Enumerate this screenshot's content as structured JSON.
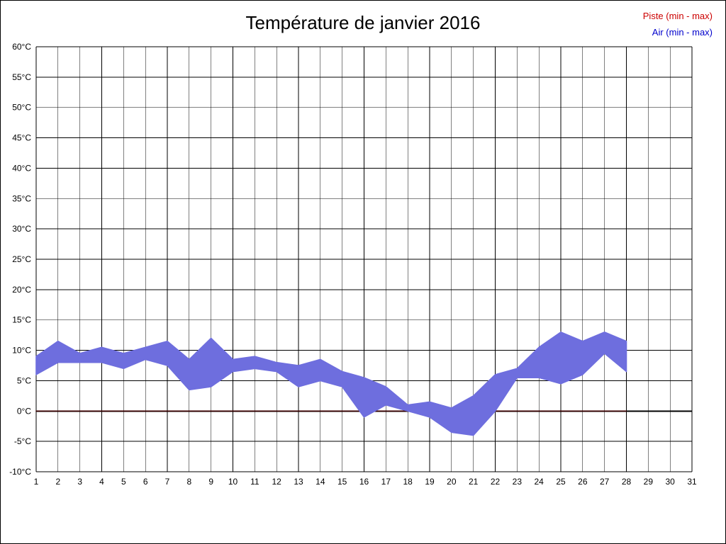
{
  "title": "Température de janvier 2016",
  "legend": [
    {
      "id": "piste",
      "label": "Piste (min - max)",
      "color": "#cc0000"
    },
    {
      "id": "air",
      "label": "Air (min - max)",
      "color": "#0000cc"
    }
  ],
  "chart_data": {
    "type": "area",
    "title": "Température de janvier 2016",
    "xlabel": "",
    "ylabel": "",
    "y_unit": "°C",
    "xlim": [
      1,
      31
    ],
    "ylim": [
      -10,
      60
    ],
    "ytick_step": 5,
    "xtick_step": 1,
    "grid": true,
    "legend_position": "top-right",
    "x": [
      1,
      2,
      3,
      4,
      5,
      6,
      7,
      8,
      9,
      10,
      11,
      12,
      13,
      14,
      15,
      16,
      17,
      18,
      19,
      20,
      21,
      22,
      23,
      24,
      25,
      26,
      27,
      28
    ],
    "series": [
      {
        "id": "piste",
        "name": "Piste (min - max)",
        "color": "#3d0000",
        "min": [
          0,
          0,
          0,
          0,
          0,
          0,
          0,
          0,
          0,
          0,
          0,
          0,
          0,
          0,
          0,
          0,
          0,
          0,
          0,
          0,
          0,
          0,
          0,
          0,
          0,
          0,
          0,
          0
        ],
        "max": [
          0,
          0,
          0,
          0,
          0,
          0,
          0,
          0,
          0,
          0,
          0,
          0,
          0,
          0,
          0,
          0,
          0,
          0,
          0,
          0,
          0,
          0,
          0,
          0,
          0,
          0,
          0,
          0
        ]
      },
      {
        "id": "air",
        "name": "Air (min - max)",
        "color": "#6e6ede",
        "min": [
          6,
          8,
          8,
          8,
          7,
          8.5,
          7.5,
          3.5,
          4,
          6.5,
          7,
          6.5,
          4,
          5,
          4,
          -1,
          1,
          0,
          -1,
          -3.5,
          -4,
          0,
          5.5,
          5.5,
          4.5,
          6,
          9.5,
          6.5
        ],
        "max": [
          9,
          11.5,
          9.5,
          10.5,
          9.5,
          10.5,
          11.5,
          8.5,
          12,
          8.5,
          9,
          8,
          7.5,
          8.5,
          6.5,
          5.5,
          4,
          1,
          1.5,
          0.5,
          2.5,
          6,
          7,
          10.5,
          13,
          11.5,
          13,
          11.5
        ]
      }
    ],
    "zero_line": true
  }
}
